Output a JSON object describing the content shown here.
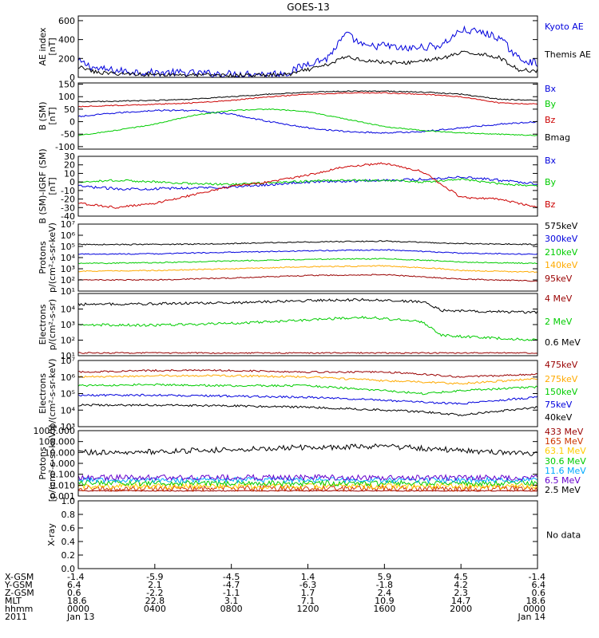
{
  "title": "GOES-13",
  "chart_data": [
    {
      "type": "line",
      "ylabel": "AE index\n[nT]",
      "ylim": [
        0,
        650
      ],
      "yticks": [
        0,
        200,
        400,
        600
      ],
      "yticklabels": [
        "0",
        "200",
        "400",
        "600"
      ],
      "series": [
        {
          "name": "Kyoto AE",
          "color": "#0000dd",
          "x": [
            0,
            1,
            2,
            3,
            4,
            5,
            6,
            7,
            8,
            9,
            10,
            11,
            12,
            13,
            14,
            15,
            16,
            17,
            18,
            19,
            20,
            21,
            22,
            23,
            24
          ],
          "values": [
            170,
            90,
            70,
            60,
            50,
            50,
            45,
            40,
            35,
            40,
            35,
            50,
            150,
            200,
            460,
            320,
            340,
            300,
            320,
            340,
            500,
            480,
            420,
            200,
            150
          ]
        },
        {
          "name": "Themis AE",
          "color": "#000000",
          "x": [
            0,
            1,
            2,
            3,
            4,
            5,
            6,
            7,
            8,
            9,
            10,
            11,
            12,
            13,
            14,
            15,
            16,
            17,
            18,
            19,
            20,
            21,
            22,
            23,
            24
          ],
          "values": [
            110,
            50,
            40,
            35,
            30,
            30,
            25,
            25,
            20,
            25,
            25,
            30,
            80,
            130,
            220,
            180,
            160,
            150,
            180,
            200,
            260,
            250,
            210,
            80,
            70
          ]
        }
      ]
    },
    {
      "type": "line",
      "ylabel": "B (SM)\n[nT]",
      "ylim": [
        -110,
        155
      ],
      "yticks": [
        -100,
        -50,
        0,
        50,
        100,
        150
      ],
      "yticklabels": [
        "-100",
        "-50",
        "0",
        "50",
        "100",
        "150"
      ],
      "series": [
        {
          "name": "Bx",
          "color": "#0000dd",
          "x": [
            0,
            2,
            4,
            6,
            8,
            10,
            12,
            14,
            16,
            18,
            20,
            22,
            24
          ],
          "values": [
            20,
            35,
            45,
            45,
            30,
            0,
            -25,
            -40,
            -45,
            -40,
            -25,
            -10,
            0
          ]
        },
        {
          "name": "By",
          "color": "#00cc00",
          "x": [
            0,
            2,
            4,
            6,
            8,
            10,
            12,
            14,
            16,
            18,
            20,
            22,
            24
          ],
          "values": [
            -55,
            -35,
            -10,
            25,
            45,
            50,
            40,
            10,
            -20,
            -35,
            -45,
            -50,
            -55
          ]
        },
        {
          "name": "Bz",
          "color": "#cc0000",
          "x": [
            0,
            2,
            4,
            6,
            8,
            10,
            12,
            14,
            16,
            18,
            20,
            22,
            24
          ],
          "values": [
            60,
            65,
            70,
            75,
            85,
            100,
            110,
            115,
            115,
            110,
            100,
            75,
            70
          ]
        },
        {
          "name": "Bmag",
          "color": "#000000",
          "x": [
            0,
            2,
            4,
            6,
            8,
            10,
            12,
            14,
            16,
            18,
            20,
            22,
            24
          ],
          "values": [
            80,
            82,
            85,
            90,
            100,
            110,
            118,
            122,
            122,
            118,
            110,
            90,
            85
          ]
        }
      ]
    },
    {
      "type": "line",
      "ylabel": "B (SM)-IGRF (SM)\n[nT]",
      "ylim": [
        -40,
        30
      ],
      "yticks": [
        -40,
        -30,
        -20,
        -10,
        0,
        10,
        20,
        30
      ],
      "yticklabels": [
        "-40",
        "-30",
        "-20",
        "-10",
        "0",
        "10",
        "20",
        "30"
      ],
      "series": [
        {
          "name": "Bx",
          "color": "#0000dd",
          "x": [
            0,
            2,
            4,
            6,
            8,
            10,
            12,
            14,
            16,
            18,
            20,
            22,
            24
          ],
          "values": [
            -5,
            -8,
            -8,
            -7,
            -6,
            -3,
            0,
            1,
            2,
            3,
            6,
            2,
            -2
          ]
        },
        {
          "name": "By",
          "color": "#00cc00",
          "x": [
            0,
            2,
            4,
            6,
            8,
            10,
            12,
            14,
            16,
            18,
            20,
            22,
            24
          ],
          "values": [
            0,
            2,
            0,
            -2,
            -3,
            -1,
            1,
            2,
            2,
            0,
            3,
            -2,
            -5
          ]
        },
        {
          "name": "Bz",
          "color": "#cc0000",
          "x": [
            0,
            2,
            4,
            6,
            8,
            10,
            12,
            14,
            16,
            18,
            20,
            22,
            24
          ],
          "values": [
            -25,
            -30,
            -25,
            -15,
            -5,
            0,
            8,
            18,
            22,
            12,
            -18,
            -20,
            -30
          ]
        }
      ]
    },
    {
      "type": "line",
      "ylabel": "Protons\np/(cm²-s-sr-keV)",
      "scale": "log",
      "ylim": [
        10,
        10000000
      ],
      "yticks": [
        10,
        100,
        1000,
        10000,
        100000,
        1000000,
        10000000
      ],
      "yticklabels": [
        "10¹",
        "10²",
        "10³",
        "10⁴",
        "10⁵",
        "10⁶",
        "10⁷"
      ],
      "series": [
        {
          "name": "575keV",
          "color": "#000000",
          "x": [
            0,
            4,
            8,
            12,
            16,
            19,
            20,
            24
          ],
          "values": [
            150000,
            150000,
            180000,
            250000,
            300000,
            200000,
            180000,
            150000
          ]
        },
        {
          "name": "300keV",
          "color": "#0000dd",
          "x": [
            0,
            4,
            8,
            12,
            16,
            19,
            20,
            24
          ],
          "values": [
            20000,
            22000,
            30000,
            40000,
            50000,
            30000,
            25000,
            20000
          ]
        },
        {
          "name": "210keV",
          "color": "#00cc00",
          "x": [
            0,
            4,
            8,
            12,
            16,
            19,
            20,
            24
          ],
          "values": [
            3000,
            3500,
            5000,
            7000,
            8000,
            5000,
            4000,
            3000
          ]
        },
        {
          "name": "140keV",
          "color": "#ffaa00",
          "x": [
            0,
            4,
            8,
            12,
            16,
            19,
            20,
            24
          ],
          "values": [
            600,
            700,
            1000,
            1500,
            1800,
            1000,
            700,
            500
          ]
        },
        {
          "name": "95keV",
          "color": "#990000",
          "x": [
            0,
            4,
            8,
            12,
            16,
            19,
            20,
            24
          ],
          "values": [
            100,
            100,
            150,
            250,
            300,
            150,
            120,
            80
          ]
        }
      ]
    },
    {
      "type": "line",
      "ylabel": "Electrons\np/(cm²-s-sr)",
      "scale": "log",
      "ylim": [
        10,
        100000
      ],
      "yticks": [
        10,
        100,
        1000,
        10000
      ],
      "yticklabels": [
        "10¹",
        "10²",
        "10³",
        "10⁴"
      ],
      "series": [
        {
          "name": "4 MeV",
          "color": "#990000",
          "x": [
            0,
            6,
            12,
            18,
            24
          ],
          "values": [
            15,
            15,
            15,
            15,
            15
          ]
        },
        {
          "name": "2 MeV",
          "color": "#00cc00",
          "x": [
            0,
            4,
            8,
            12,
            15,
            18,
            19,
            24
          ],
          "values": [
            1000,
            900,
            1200,
            2000,
            3000,
            1500,
            200,
            100
          ]
        },
        {
          "name": "0.6 MeV",
          "color": "#000000",
          "x": [
            0,
            4,
            8,
            12,
            15,
            18,
            19,
            24
          ],
          "values": [
            20000,
            22000,
            25000,
            35000,
            40000,
            30000,
            8000,
            6000
          ]
        }
      ]
    },
    {
      "type": "line",
      "ylabel": "Electrons\np/(cm²-s-sr-keV)",
      "scale": "log",
      "ylim": [
        1000,
        10000000
      ],
      "yticks": [
        1000,
        10000,
        100000,
        1000000,
        10000000
      ],
      "yticklabels": [
        "10³",
        "10⁴",
        "10⁵",
        "10⁶",
        "10⁷"
      ],
      "series": [
        {
          "name": "475keV",
          "color": "#990000",
          "x": [
            0,
            4,
            8,
            12,
            16,
            18,
            20,
            24
          ],
          "values": [
            2000000,
            2500000,
            2500000,
            2000000,
            2000000,
            1500000,
            1000000,
            1500000
          ]
        },
        {
          "name": "275keV",
          "color": "#ffaa00",
          "x": [
            0,
            4,
            8,
            12,
            16,
            18,
            20,
            24
          ],
          "values": [
            1000000,
            1200000,
            1200000,
            1000000,
            600000,
            500000,
            400000,
            800000
          ]
        },
        {
          "name": "150keV",
          "color": "#00cc00",
          "x": [
            0,
            4,
            8,
            12,
            16,
            18,
            20,
            24
          ],
          "values": [
            300000,
            350000,
            300000,
            300000,
            150000,
            100000,
            150000,
            250000
          ]
        },
        {
          "name": "75keV",
          "color": "#0000dd",
          "x": [
            0,
            4,
            8,
            12,
            16,
            18,
            20,
            24
          ],
          "values": [
            80000,
            80000,
            70000,
            60000,
            40000,
            30000,
            25000,
            60000
          ]
        },
        {
          "name": "40keV",
          "color": "#000000",
          "x": [
            0,
            4,
            8,
            12,
            16,
            18,
            20,
            24
          ],
          "values": [
            20000,
            20000,
            18000,
            15000,
            10000,
            8000,
            5000,
            15000
          ]
        }
      ]
    },
    {
      "type": "line",
      "ylabel": "Protons\n[p/(cm²-s-sr-keV)]",
      "scale": "log",
      "ylim": [
        0.001,
        1000
      ],
      "yticks": [
        0.001,
        0.01,
        0.1,
        1,
        10,
        100,
        1000
      ],
      "yticklabels": [
        "0.001",
        "0.010",
        "0.100",
        "1.000",
        "10.000",
        "100.000",
        "1000.000"
      ],
      "series": [
        {
          "name": "433 MeV",
          "color": "#990000",
          "x": [
            0,
            24
          ],
          "values": [
            0.003,
            0.003
          ]
        },
        {
          "name": "165 MeV",
          "color": "#cc3300",
          "x": [
            0,
            24
          ],
          "values": [
            0.005,
            0.005
          ]
        },
        {
          "name": "63.1 MeV",
          "color": "#ffcc00",
          "x": [
            0,
            24
          ],
          "values": [
            0.008,
            0.008
          ]
        },
        {
          "name": "30.6 MeV",
          "color": "#00cc00",
          "x": [
            0,
            24
          ],
          "values": [
            0.015,
            0.015
          ]
        },
        {
          "name": "11.6 MeV",
          "color": "#00aaff",
          "x": [
            0,
            24
          ],
          "values": [
            0.03,
            0.03
          ]
        },
        {
          "name": "6.5 MeV",
          "color": "#6600cc",
          "x": [
            0,
            24
          ],
          "values": [
            0.05,
            0.05
          ]
        },
        {
          "name": "2.5 MeV",
          "color": "#000000",
          "x": [
            0,
            4,
            8,
            12,
            16,
            18,
            20,
            24
          ],
          "values": [
            10,
            12,
            18,
            30,
            35,
            25,
            15,
            8
          ]
        }
      ]
    },
    {
      "type": "line",
      "ylabel": "X-ray",
      "ylim": [
        0,
        1
      ],
      "yticks": [
        0,
        0.2,
        0.4,
        0.6,
        0.8,
        1.0
      ],
      "yticklabels": [
        "0.0",
        "0.2",
        "0.4",
        "0.6",
        "0.8",
        "1.0"
      ],
      "series": [],
      "note": "No data"
    }
  ],
  "ephemeris": {
    "rows": [
      {
        "label": "X-GSM",
        "values": [
          "-1.4",
          "-5.9",
          "-4.5",
          "1.4",
          "5.9",
          "4.5",
          "-1.4"
        ]
      },
      {
        "label": "Y-GSM",
        "values": [
          "6.4",
          "2.1",
          "-4.7",
          "-6.3",
          "-1.8",
          "4.2",
          "6.4"
        ]
      },
      {
        "label": "Z-GSM",
        "values": [
          "0.6",
          "-2.2",
          "-1.1",
          "1.7",
          "2.4",
          "2.3",
          "0.6"
        ]
      },
      {
        "label": "MLT",
        "values": [
          "18.6",
          "22.8",
          "3.1",
          "7.1",
          "10.9",
          "14.7",
          "18.6"
        ]
      },
      {
        "label": "hhmm",
        "values": [
          "0000",
          "0400",
          "0800",
          "1200",
          "1600",
          "2000",
          "0000"
        ]
      },
      {
        "label": "2011",
        "values": [
          "Jan 13",
          "",
          "",
          "",
          "",
          "",
          "Jan 14"
        ]
      }
    ]
  }
}
